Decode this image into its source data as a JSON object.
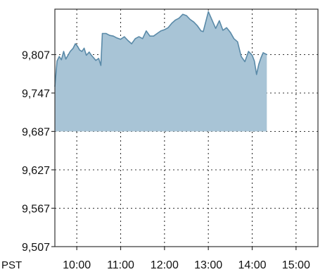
{
  "chart_data": {
    "type": "area",
    "timezone_label": "PST",
    "y_ticks": [
      "9,507",
      "9,567",
      "9,627",
      "9,687",
      "9,747",
      "9,807"
    ],
    "x_ticks": [
      "10:00",
      "11:00",
      "12:00",
      "13:00",
      "14:00",
      "15:00"
    ],
    "ylim": [
      9507,
      9878
    ],
    "xlim": [
      "09:30",
      "15:30"
    ],
    "baseline": 9687,
    "grid": true,
    "colors": {
      "line": "#5a8aa8",
      "fill": "#a8c4d6",
      "grid": "#333333",
      "frame": "#333333"
    },
    "series": [
      {
        "x": [
          "09:30",
          "09:33",
          "09:36",
          "09:39",
          "09:42",
          "09:45",
          "09:48",
          "09:51",
          "09:55",
          "09:58",
          "10:01",
          "10:04",
          "10:07",
          "10:10",
          "10:13",
          "10:17",
          "10:20",
          "10:23",
          "10:26",
          "10:30",
          "10:33",
          "10:35",
          "10:40",
          "10:45",
          "10:50",
          "10:55",
          "11:00",
          "11:05",
          "11:10",
          "11:15",
          "11:20",
          "11:25",
          "11:30",
          "11:35",
          "11:40",
          "11:45",
          "11:50",
          "11:55",
          "12:00",
          "12:05",
          "12:10",
          "12:15",
          "12:20",
          "12:25",
          "12:30",
          "12:35",
          "12:40",
          "12:45",
          "12:50",
          "12:53",
          "13:00",
          "13:05",
          "13:10",
          "13:15",
          "13:20",
          "13:25",
          "13:30",
          "13:35",
          "13:40",
          "13:45",
          "13:50",
          "13:55",
          "14:00",
          "14:03",
          "14:06",
          "14:09",
          "14:12",
          "14:15",
          "14:20"
        ],
        "values": [
          9757,
          9797,
          9804,
          9799,
          9812,
          9800,
          9806,
          9812,
          9817,
          9824,
          9820,
          9814,
          9812,
          9817,
          9806,
          9811,
          9806,
          9802,
          9798,
          9801,
          9790,
          9840,
          9840,
          9837,
          9836,
          9833,
          9831,
          9835,
          9829,
          9824,
          9832,
          9835,
          9832,
          9844,
          9836,
          9836,
          9840,
          9844,
          9846,
          9849,
          9856,
          9861,
          9864,
          9870,
          9868,
          9862,
          9858,
          9852,
          9844,
          9843,
          9874,
          9861,
          9848,
          9860,
          9845,
          9849,
          9842,
          9832,
          9827,
          9804,
          9796,
          9812,
          9806,
          9797,
          9776,
          9792,
          9802,
          9810,
          9807
        ]
      }
    ]
  }
}
